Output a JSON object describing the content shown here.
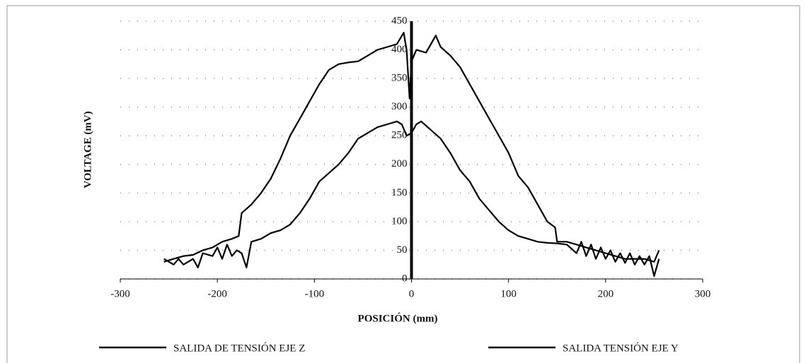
{
  "chart_data": {
    "type": "line",
    "xlabel": "POSICIÓN (mm)",
    "ylabel": "VOLTAGE (mV)",
    "xlim": [
      -300,
      300
    ],
    "xticks": [
      -300,
      -200,
      -100,
      0,
      100,
      200,
      300
    ],
    "ylim": [
      0,
      450
    ],
    "yticks": [
      0,
      50,
      100,
      150,
      200,
      250,
      300,
      350,
      400,
      450
    ],
    "grid": true,
    "legend": "bottom",
    "series": [
      {
        "name": "SALIDA DE TENSIÓN EJE Z",
        "color": "#000000",
        "x": [
          -255,
          -245,
          -235,
          -225,
          -215,
          -205,
          -195,
          -185,
          -178,
          -175,
          -165,
          -155,
          -145,
          -135,
          -125,
          -115,
          -105,
          -95,
          -85,
          -75,
          -65,
          -55,
          -45,
          -35,
          -25,
          -15,
          -8,
          -5,
          -2,
          0,
          5,
          15,
          25,
          30,
          40,
          50,
          60,
          70,
          80,
          90,
          100,
          110,
          120,
          130,
          140,
          148,
          150,
          160,
          170,
          180,
          190,
          200,
          210,
          220,
          230,
          240,
          250,
          255
        ],
        "values": [
          30,
          35,
          40,
          42,
          50,
          55,
          65,
          70,
          75,
          115,
          130,
          150,
          175,
          210,
          250,
          280,
          310,
          340,
          365,
          375,
          378,
          380,
          390,
          400,
          405,
          410,
          430,
          400,
          315,
          380,
          400,
          395,
          425,
          405,
          390,
          370,
          340,
          310,
          280,
          250,
          220,
          180,
          160,
          130,
          100,
          90,
          65,
          65,
          60,
          55,
          50,
          45,
          40,
          35,
          35,
          35,
          30,
          50
        ]
      },
      {
        "name": "SALIDA TENSIÓN EJE Y",
        "color": "#000000",
        "x": [
          -255,
          -245,
          -240,
          -235,
          -225,
          -220,
          -215,
          -205,
          -200,
          -195,
          -190,
          -185,
          -180,
          -175,
          -170,
          -165,
          -155,
          -145,
          -135,
          -125,
          -115,
          -105,
          -95,
          -85,
          -75,
          -65,
          -55,
          -45,
          -35,
          -25,
          -15,
          -10,
          -5,
          0,
          5,
          10,
          20,
          30,
          40,
          50,
          60,
          70,
          80,
          90,
          100,
          110,
          120,
          130,
          140,
          150,
          160,
          170,
          175,
          180,
          185,
          190,
          195,
          200,
          205,
          210,
          215,
          220,
          225,
          230,
          235,
          240,
          245,
          250,
          255
        ],
        "values": [
          35,
          25,
          35,
          25,
          35,
          20,
          45,
          40,
          55,
          35,
          60,
          40,
          50,
          45,
          20,
          65,
          70,
          80,
          85,
          95,
          115,
          140,
          170,
          185,
          200,
          220,
          245,
          255,
          265,
          270,
          275,
          270,
          250,
          255,
          270,
          275,
          260,
          245,
          220,
          190,
          170,
          140,
          120,
          100,
          85,
          75,
          70,
          65,
          63,
          62,
          60,
          45,
          65,
          40,
          60,
          35,
          55,
          35,
          50,
          30,
          45,
          28,
          45,
          25,
          40,
          25,
          40,
          5,
          35
        ]
      }
    ]
  }
}
